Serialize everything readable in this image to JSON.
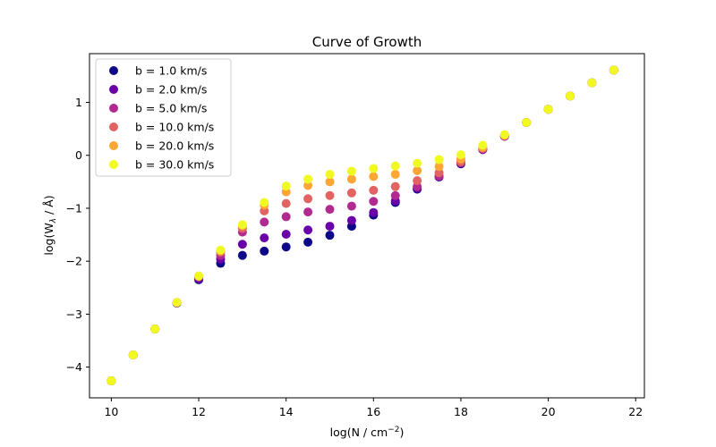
{
  "chart_data": {
    "type": "scatter",
    "title": "Curve of Growth",
    "xlabel_main": "log(N / cm",
    "xlabel_sup": "−2",
    "xlabel_end": ")",
    "ylabel_main": "log(W",
    "ylabel_sub": "λ",
    "ylabel_end": " / Å)",
    "xlim": [
      9.5,
      22.2
    ],
    "ylim": [
      -4.58,
      1.92
    ],
    "x_ticks": [
      10,
      12,
      14,
      16,
      18,
      20,
      22
    ],
    "x_tick_labels": [
      "10",
      "12",
      "14",
      "16",
      "18",
      "20",
      "22"
    ],
    "y_ticks": [
      -4,
      -3,
      -2,
      -1,
      0,
      1
    ],
    "y_tick_labels": [
      "−4",
      "−3",
      "−2",
      "−1",
      "0",
      "1"
    ],
    "grid": false,
    "legend_position": "top-left",
    "x": [
      10.0,
      10.5,
      11.0,
      11.5,
      12.0,
      12.5,
      13.0,
      13.5,
      14.0,
      14.5,
      15.0,
      15.5,
      16.0,
      16.5,
      17.0,
      17.5,
      18.0,
      18.5,
      19.0,
      19.5,
      20.0,
      20.5,
      21.0,
      21.5
    ],
    "series": [
      {
        "name": "b = 1.0 km/s",
        "color": "#0d0887",
        "values": [
          -4.26,
          -3.77,
          -3.28,
          -2.79,
          -2.35,
          -2.04,
          -1.89,
          -1.81,
          -1.73,
          -1.64,
          -1.51,
          -1.34,
          -1.13,
          -0.89,
          -0.64,
          -0.41,
          -0.16,
          0.11,
          0.36,
          0.62,
          0.87,
          1.12,
          1.37,
          1.61
        ]
      },
      {
        "name": "b = 2.0 km/s",
        "color": "#6a00a8",
        "values": [
          -4.26,
          -3.77,
          -3.28,
          -2.79,
          -2.33,
          -1.96,
          -1.68,
          -1.56,
          -1.49,
          -1.41,
          -1.34,
          -1.23,
          -1.08,
          -0.86,
          -0.62,
          -0.4,
          -0.15,
          0.11,
          0.36,
          0.62,
          0.87,
          1.12,
          1.37,
          1.61
        ]
      },
      {
        "name": "b = 5.0 km/s",
        "color": "#b12a90",
        "values": [
          -4.26,
          -3.77,
          -3.28,
          -2.78,
          -2.3,
          -1.89,
          -1.45,
          -1.26,
          -1.16,
          -1.07,
          -1.02,
          -0.96,
          -0.87,
          -0.76,
          -0.59,
          -0.39,
          -0.14,
          0.12,
          0.36,
          0.62,
          0.87,
          1.12,
          1.37,
          1.61
        ]
      },
      {
        "name": "b = 10.0 km/s",
        "color": "#e16462",
        "values": [
          -4.26,
          -3.77,
          -3.28,
          -2.78,
          -2.29,
          -1.83,
          -1.38,
          -1.05,
          -0.91,
          -0.82,
          -0.76,
          -0.71,
          -0.66,
          -0.59,
          -0.48,
          -0.33,
          -0.12,
          0.13,
          0.37,
          0.62,
          0.87,
          1.12,
          1.37,
          1.61
        ]
      },
      {
        "name": "b = 20.0 km/s",
        "color": "#fca636",
        "values": [
          -4.26,
          -3.77,
          -3.28,
          -2.78,
          -2.28,
          -1.8,
          -1.33,
          -0.94,
          -0.69,
          -0.57,
          -0.5,
          -0.45,
          -0.4,
          -0.36,
          -0.29,
          -0.21,
          -0.07,
          0.15,
          0.38,
          0.62,
          0.87,
          1.12,
          1.37,
          1.61
        ]
      },
      {
        "name": "b = 30.0 km/s",
        "color": "#f0f921",
        "values": [
          -4.26,
          -3.77,
          -3.28,
          -2.78,
          -2.28,
          -1.79,
          -1.31,
          -0.89,
          -0.58,
          -0.45,
          -0.36,
          -0.3,
          -0.25,
          -0.2,
          -0.15,
          -0.08,
          0.01,
          0.19,
          0.39,
          0.62,
          0.87,
          1.12,
          1.37,
          1.61
        ]
      }
    ]
  }
}
